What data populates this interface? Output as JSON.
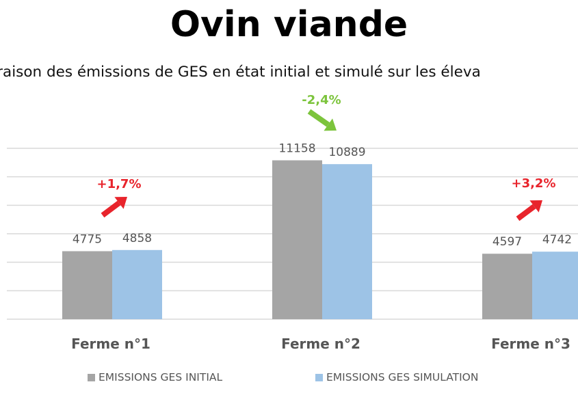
{
  "title": "Ovin viande",
  "subtitle": "araison des émissions de GES en état initial et simulé sur les éleva",
  "colors": {
    "initial": "#a5a5a5",
    "simulation": "#9dc3e6",
    "increase": "#e8242c",
    "decrease": "#7cc43c",
    "grid": "#d9d9d9"
  },
  "chart_data": {
    "type": "bar",
    "categories": [
      "Ferme n°1",
      "Ferme n°2",
      "Ferme n°3"
    ],
    "series": [
      {
        "name": "EMISSIONS GES INITIAL",
        "values": [
          4775,
          11158,
          4597
        ]
      },
      {
        "name": "EMISSIONS GES SIMULATION",
        "values": [
          4858,
          10889,
          4742
        ]
      }
    ],
    "annotations": [
      {
        "category": "Ferme n°1",
        "text": "+1,7%",
        "direction": "up"
      },
      {
        "category": "Ferme n°2",
        "text": "-2,4%",
        "direction": "down"
      },
      {
        "category": "Ferme n°3",
        "text": "+3,2%",
        "direction": "up"
      }
    ],
    "ylim": [
      0,
      12000
    ],
    "grid": true,
    "legend": "bottom"
  }
}
